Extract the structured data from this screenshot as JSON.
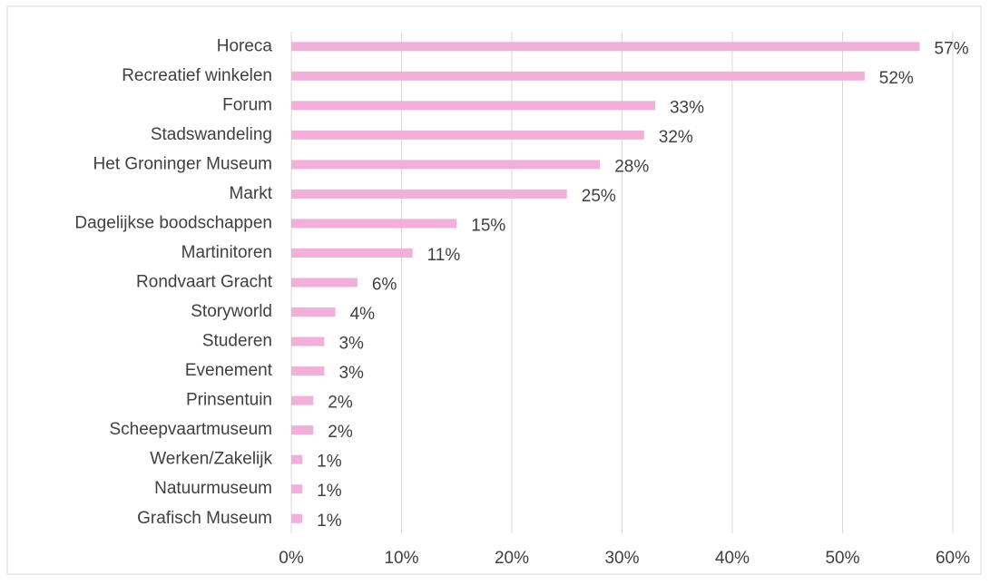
{
  "chart_data": {
    "type": "bar",
    "orientation": "horizontal",
    "categories": [
      "Horeca",
      "Recreatief winkelen",
      "Forum",
      "Stadswandeling",
      "Het Groninger Museum",
      "Markt",
      "Dagelijkse boodschappen",
      "Martinitoren",
      "Rondvaart Gracht",
      "Storyworld",
      "Studeren",
      "Evenement",
      "Prinsentuin",
      "Scheepvaartmuseum",
      "Werken/Zakelijk",
      "Natuurmuseum",
      "Grafisch Museum"
    ],
    "values": [
      57,
      52,
      33,
      32,
      28,
      25,
      15,
      11,
      6,
      4,
      3,
      3,
      2,
      2,
      1,
      1,
      1
    ],
    "value_labels": [
      "57%",
      "52%",
      "33%",
      "32%",
      "28%",
      "25%",
      "15%",
      "11%",
      "6%",
      "4%",
      "3%",
      "3%",
      "2%",
      "2%",
      "1%",
      "1%",
      "1%"
    ],
    "color": "#f2afd9",
    "xlim": [
      0,
      60
    ],
    "xticks": [
      {
        "value": 0,
        "label": "0%"
      },
      {
        "value": 10,
        "label": "10%"
      },
      {
        "value": 20,
        "label": "20%"
      },
      {
        "value": 30,
        "label": "30%"
      },
      {
        "value": 40,
        "label": "40%"
      },
      {
        "value": 50,
        "label": "50%"
      },
      {
        "value": 60,
        "label": "60%"
      }
    ],
    "grid": true
  }
}
